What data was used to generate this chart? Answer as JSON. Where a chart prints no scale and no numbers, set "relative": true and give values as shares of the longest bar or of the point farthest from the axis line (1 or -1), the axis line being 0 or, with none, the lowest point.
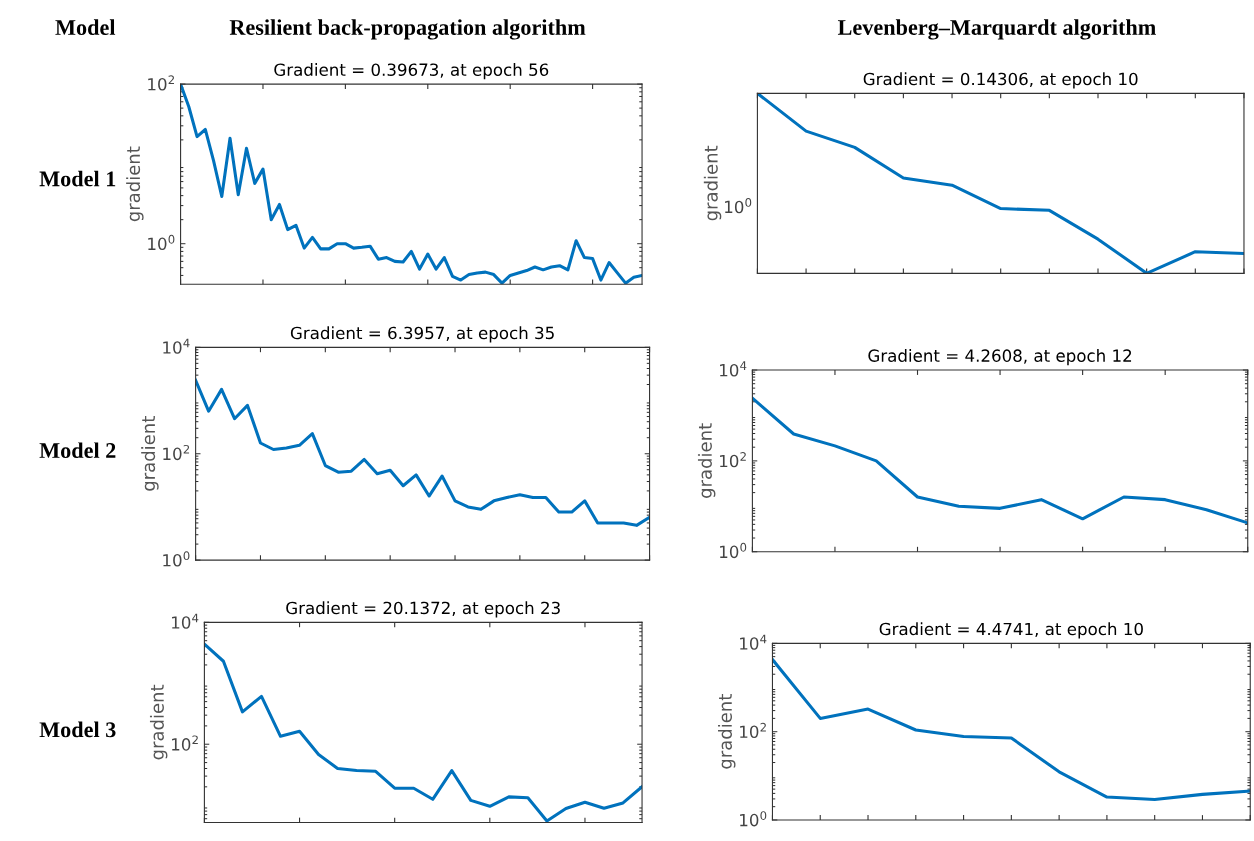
{
  "chart_data": [
    {
      "type": "other",
      "annotations": [
        "Model",
        "Resilient back-propagation algorithm",
        "Levenberg–Marquardt algorithm",
        "Model 1",
        "Model 2",
        "Model 3"
      ]
    },
    {
      "type": "line",
      "title": "Gradient = 0.39673, at epoch 56",
      "ylabel": "gradient",
      "log": "y",
      "grid": false,
      "tick_labels": "y",
      "marker": "none",
      "line_style": "solid",
      "categories": [
        null,
        null,
        null,
        null,
        null,
        null,
        null,
        null,
        null,
        null,
        null,
        null,
        null,
        null,
        null,
        null,
        null,
        null,
        null,
        null,
        null,
        null,
        null,
        null,
        null,
        null,
        null,
        null,
        null,
        null,
        null,
        null,
        null,
        null,
        null,
        null,
        null,
        null,
        null,
        null,
        null,
        null,
        null,
        null,
        null,
        null,
        null,
        null,
        null,
        null,
        null,
        null,
        null,
        null,
        null,
        null,
        null
      ],
      "ylim": [
        0.31,
        100
      ],
      "yticks": [
        {
          "value": 1,
          "label": "10$^{0}$"
        },
        {
          "value": 100,
          "label": "10$^{2}$"
        }
      ],
      "series": [
        {
          "color": "#0072bd",
          "values": [
            100,
            52,
            22,
            27,
            11,
            3.9,
            21,
            4.1,
            15.7,
            5.7,
            8.6,
            2.0,
            3.1,
            1.5,
            1.7,
            0.88,
            1.2,
            0.86,
            0.86,
            1.0,
            1.0,
            0.88,
            0.9,
            0.93,
            0.64,
            0.67,
            0.6,
            0.59,
            0.8,
            0.48,
            0.74,
            0.48,
            0.67,
            0.39,
            0.35,
            0.41,
            0.43,
            0.44,
            0.41,
            0.32,
            0.4,
            0.43,
            0.46,
            0.51,
            0.47,
            0.51,
            0.53,
            0.47,
            1.09,
            0.67,
            0.65,
            0.35,
            0.58,
            0.43,
            0.32,
            0.38,
            0.4
          ]
        }
      ]
    },
    {
      "type": "line",
      "title": "Gradient = 0.14306, at epoch 10",
      "ylabel": "gradient",
      "relative": true,
      "grid": false,
      "tick_labels": false,
      "marker": "none",
      "line_style": "solid",
      "categories": [
        null,
        null,
        null,
        null,
        null,
        null,
        null,
        null,
        null,
        null,
        null
      ],
      "annotations": [
        "10$^{0}$"
      ],
      "series": [
        {
          "color": "#0072bd",
          "values": [
            1.0,
            0.79,
            0.7,
            0.53,
            0.49,
            0.36,
            0.35,
            0.19,
            0.0,
            0.12,
            0.11
          ]
        }
      ]
    },
    {
      "type": "line",
      "title": "Gradient = 6.3957, at epoch 35",
      "ylabel": "gradient",
      "log": "y",
      "grid": false,
      "tick_labels": "y",
      "marker": "none",
      "line_style": "solid",
      "categories": [
        null,
        null,
        null,
        null,
        null,
        null,
        null,
        null,
        null,
        null,
        null,
        null,
        null,
        null,
        null,
        null,
        null,
        null,
        null,
        null,
        null,
        null,
        null,
        null,
        null,
        null,
        null,
        null,
        null,
        null,
        null,
        null,
        null,
        null,
        null,
        null
      ],
      "ylim": [
        1,
        10000
      ],
      "yticks": [
        {
          "value": 1,
          "label": "10$^{0}$"
        },
        {
          "value": 100,
          "label": "10$^{2}$"
        },
        {
          "value": 10000,
          "label": "10$^{4}$"
        }
      ],
      "series": [
        {
          "color": "#0072bd",
          "values": [
            2400,
            630,
            1620,
            455,
            810,
            159,
            120,
            128,
            144,
            239,
            60,
            45,
            47,
            78,
            42,
            49,
            25,
            40,
            16,
            38,
            13,
            10,
            9,
            13,
            15,
            17,
            15,
            15,
            8,
            8,
            13,
            5,
            5,
            5,
            4.5,
            6.4
          ]
        }
      ]
    },
    {
      "type": "line",
      "title": "Gradient = 4.2608, at epoch 12",
      "ylabel": "gradient",
      "log": "y",
      "grid": false,
      "tick_labels": "y",
      "marker": "none",
      "line_style": "solid",
      "categories": [
        null,
        null,
        null,
        null,
        null,
        null,
        null,
        null,
        null,
        null,
        null,
        null,
        null
      ],
      "ylim": [
        1,
        10000
      ],
      "yticks": [
        {
          "value": 1,
          "label": "10$^{0}$"
        },
        {
          "value": 100,
          "label": "10$^{2}$"
        },
        {
          "value": 10000,
          "label": "10$^{4}$"
        }
      ],
      "series": [
        {
          "color": "#0072bd",
          "values": [
            2400,
            390,
            214,
            100,
            16,
            10,
            9,
            14,
            5.3,
            16,
            14,
            8.4,
            4.3
          ]
        }
      ]
    },
    {
      "type": "line",
      "title": "Gradient = 20.1372, at epoch 23",
      "ylabel": "gradient",
      "log": "y",
      "grid": false,
      "tick_labels": "y",
      "marker": "none",
      "line_style": "solid",
      "categories": [
        null,
        null,
        null,
        null,
        null,
        null,
        null,
        null,
        null,
        null,
        null,
        null,
        null,
        null,
        null,
        null,
        null,
        null,
        null,
        null,
        null,
        null,
        null,
        null
      ],
      "ylim": [
        5.2,
        10000
      ],
      "yticks": [
        {
          "value": 100,
          "label": "10$^{2}$"
        },
        {
          "value": 10000,
          "label": "10$^{4}$"
        }
      ],
      "series": [
        {
          "color": "#0072bd",
          "values": [
            4400,
            2300,
            340,
            610,
            135,
            163,
            68,
            40,
            37,
            36,
            19,
            19,
            12.5,
            37,
            12,
            9.6,
            13.7,
            13.2,
            5.5,
            8.8,
            11.2,
            8.9,
            10.9,
            20.1
          ]
        }
      ]
    },
    {
      "type": "line",
      "title": "Gradient = 4.4741, at epoch 10",
      "ylabel": "gradient",
      "log": "y",
      "grid": false,
      "tick_labels": "y",
      "marker": "none",
      "line_style": "solid",
      "categories": [
        null,
        null,
        null,
        null,
        null,
        null,
        null,
        null,
        null,
        null,
        null
      ],
      "ylim": [
        1,
        10000
      ],
      "yticks": [
        {
          "value": 1,
          "label": "10$^{0}$"
        },
        {
          "value": 100,
          "label": "10$^{2}$"
        },
        {
          "value": 10000,
          "label": "10$^{4}$"
        }
      ],
      "series": [
        {
          "color": "#0072bd",
          "values": [
            4300,
            200,
            325,
            109,
            78,
            72,
            12.3,
            3.3,
            2.9,
            3.8,
            4.5
          ]
        }
      ]
    }
  ]
}
